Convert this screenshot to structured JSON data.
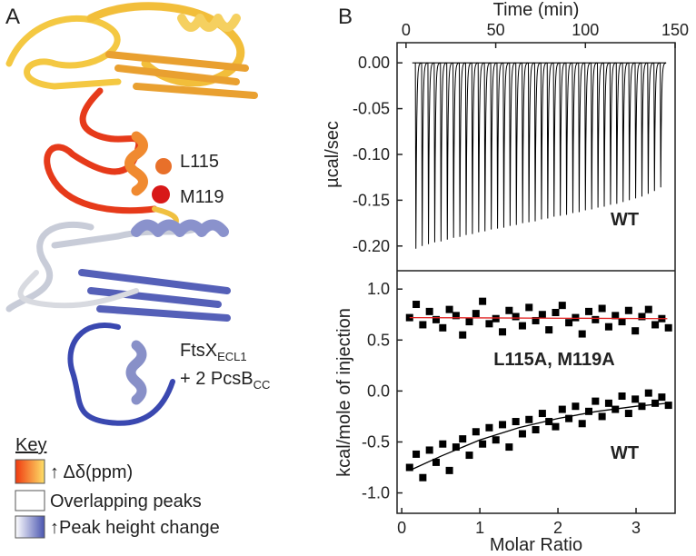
{
  "figure": {
    "panel_labels": [
      "A",
      "B"
    ],
    "residues": [
      "L115",
      "M119"
    ],
    "complex_label": {
      "main": "FtsX",
      "sub1": "ECL1",
      "line2": "+ 2 PcsB",
      "sub2": "CC"
    },
    "key": {
      "title": "Key",
      "items": [
        "↑ Δδ(ppm)",
        "Overlapping peaks",
        "↑Peak height change"
      ]
    }
  },
  "chart_data": [
    {
      "type": "peaks",
      "xlabel": "Time (min)",
      "ylabel": "µcal/sec",
      "annotation": "WT",
      "color": "#000000",
      "x": [
        5.5,
        9,
        12.5,
        16,
        19.5,
        23,
        26.5,
        30,
        33.5,
        37,
        40.5,
        44,
        47.5,
        51,
        54.5,
        58,
        61.5,
        65,
        68.5,
        72,
        75.5,
        79,
        82.5,
        86,
        89.5,
        93,
        96.5,
        100,
        103.5,
        107,
        110.5,
        114,
        117.5,
        121,
        124.5,
        128,
        131.5,
        135,
        138.5,
        142
      ],
      "values": [
        -0.203,
        -0.2,
        -0.198,
        -0.196,
        -0.195,
        -0.193,
        -0.191,
        -0.19,
        -0.188,
        -0.187,
        -0.185,
        -0.184,
        -0.182,
        -0.181,
        -0.18,
        -0.178,
        -0.177,
        -0.175,
        -0.174,
        -0.173,
        -0.171,
        -0.17,
        -0.168,
        -0.167,
        -0.166,
        -0.164,
        -0.163,
        -0.161,
        -0.16,
        -0.158,
        -0.157,
        -0.155,
        -0.154,
        -0.152,
        -0.15,
        -0.148,
        -0.146,
        -0.143,
        -0.14,
        -0.136
      ],
      "xlim": [
        -5,
        150
      ],
      "xticks": [
        0,
        50,
        100,
        150
      ],
      "ylim": [
        -0.227,
        0.022
      ],
      "yticks": [
        {
          "value": 0,
          "label": "0.00"
        },
        {
          "value": -0.05,
          "label": "-0.05"
        },
        {
          "value": -0.1,
          "label": "-0.10"
        },
        {
          "value": -0.15,
          "label": "-0.15"
        },
        {
          "value": -0.2,
          "label": "-0.20"
        }
      ]
    },
    {
      "type": "scatter",
      "xlabel": "Molar Ratio",
      "ylabel": "kcal/mole of injection",
      "x": [
        0.1,
        0.185,
        0.27,
        0.355,
        0.44,
        0.525,
        0.61,
        0.695,
        0.78,
        0.865,
        0.95,
        1.035,
        1.12,
        1.205,
        1.29,
        1.375,
        1.46,
        1.545,
        1.63,
        1.715,
        1.8,
        1.885,
        1.97,
        2.055,
        2.14,
        2.225,
        2.31,
        2.395,
        2.48,
        2.565,
        2.65,
        2.735,
        2.82,
        2.905,
        2.99,
        3.075,
        3.16,
        3.245,
        3.33,
        3.415
      ],
      "series": [
        {
          "name": "L115A, M119A",
          "color": "#000000",
          "fit_color": "#e02020",
          "values": [
            0.72,
            0.85,
            0.65,
            0.78,
            0.7,
            0.62,
            0.8,
            0.74,
            0.55,
            0.68,
            0.76,
            0.88,
            0.66,
            0.71,
            0.58,
            0.79,
            0.73,
            0.64,
            0.82,
            0.69,
            0.75,
            0.6,
            0.77,
            0.84,
            0.67,
            0.72,
            0.56,
            0.78,
            0.7,
            0.81,
            0.63,
            0.74,
            0.68,
            0.79,
            0.59,
            0.73,
            0.8,
            0.65,
            0.71,
            0.62
          ],
          "fit_x": [
            0.1,
            3.4
          ],
          "fit_values": [
            0.72,
            0.71
          ]
        },
        {
          "name": "WT",
          "color": "#000000",
          "fit_color": "#000000",
          "values": [
            -0.75,
            -0.62,
            -0.85,
            -0.58,
            -0.7,
            -0.52,
            -0.78,
            -0.55,
            -0.47,
            -0.63,
            -0.4,
            -0.52,
            -0.36,
            -0.48,
            -0.33,
            -0.55,
            -0.3,
            -0.42,
            -0.28,
            -0.38,
            -0.22,
            -0.3,
            -0.35,
            -0.18,
            -0.27,
            -0.15,
            -0.32,
            -0.2,
            -0.1,
            -0.25,
            -0.12,
            -0.18,
            -0.05,
            -0.22,
            -0.08,
            -0.15,
            -0.02,
            -0.12,
            -0.06,
            -0.14
          ],
          "fit_x": [
            0.1,
            0.5,
            1,
            1.5,
            2,
            2.5,
            3,
            3.4
          ],
          "fit_values": [
            -0.78,
            -0.64,
            -0.48,
            -0.36,
            -0.27,
            -0.2,
            -0.15,
            -0.12
          ]
        }
      ],
      "xlim": [
        -0.06,
        3.5
      ],
      "xticks": [
        0,
        1,
        2,
        3
      ],
      "ylim": [
        -1.2,
        1.18
      ],
      "yticks": [
        {
          "value": 1,
          "label": "1.0"
        },
        {
          "value": 0.5,
          "label": "0.5"
        },
        {
          "value": 0,
          "label": "0.0"
        },
        {
          "value": -0.5,
          "label": "-0.5"
        },
        {
          "value": -1,
          "label": "-1.0"
        }
      ]
    }
  ]
}
